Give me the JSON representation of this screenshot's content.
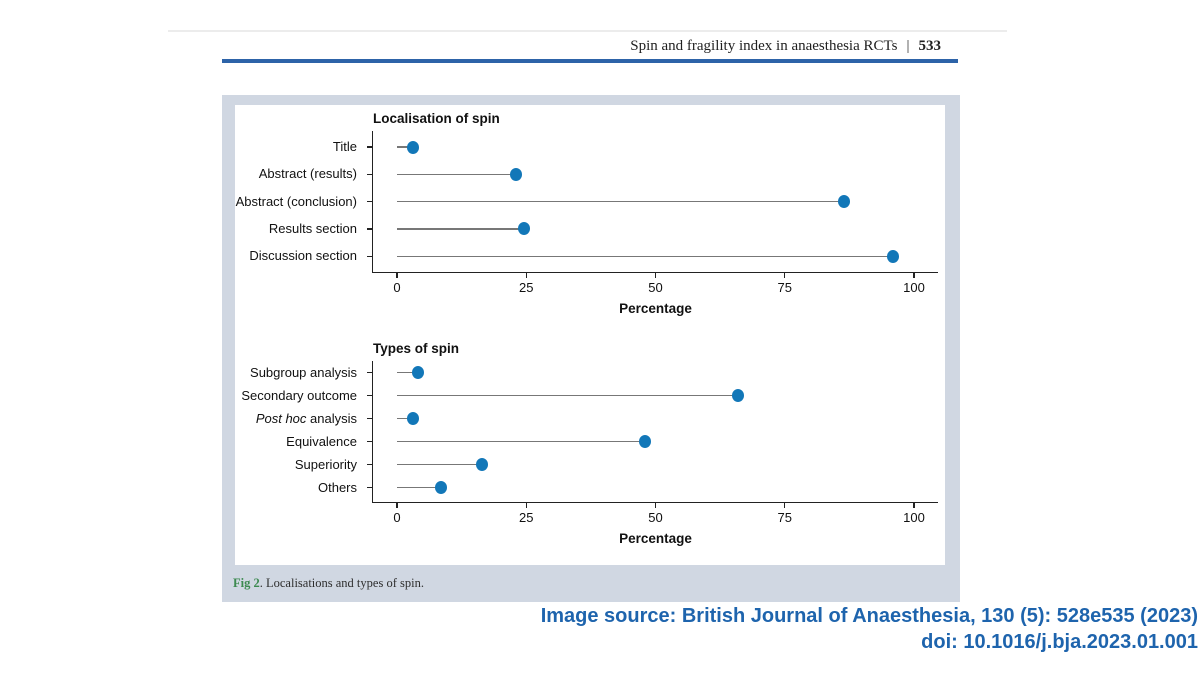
{
  "header": {
    "title": "Spin and fragility index in anaesthesia RCTs",
    "separator": "|",
    "page_number": "533"
  },
  "figure": {
    "caption_label": "Fig 2",
    "caption_text": ". Localisations and types of spin."
  },
  "source": {
    "line1": "Image source: British Journal of Anaesthesia, 130 (5): 528e535 (2023)",
    "line2": "doi: 10.1016/j.bja.2023.01.001"
  },
  "colors": {
    "dot": "#1277b8",
    "stem": "#777777",
    "figure_bg": "#d0d7e2",
    "header_bar": "#2d63a8",
    "caption_label_green": "#3d8a50",
    "source_text": "#1e64ad"
  },
  "chart_data": [
    {
      "type": "lollipop",
      "title": "Localisation of spin",
      "xlabel": "Percentage",
      "xlim": [
        0,
        100
      ],
      "xticks": [
        0,
        25,
        50,
        75,
        100
      ],
      "grid": false,
      "categories": [
        "Title",
        "Abstract (results)",
        "Abstract (conclusion)",
        "Results section",
        "Discussion section"
      ],
      "values": [
        3,
        23,
        86.5,
        24.5,
        96
      ]
    },
    {
      "type": "lollipop",
      "title": "Types of spin",
      "xlabel": "Percentage",
      "xlim": [
        0,
        100
      ],
      "xticks": [
        0,
        25,
        50,
        75,
        100
      ],
      "grid": false,
      "categories": [
        "Subgroup analysis",
        "Secondary outcome",
        "Post hoc analysis",
        "Equivalence",
        "Superiority",
        "Others"
      ],
      "values": [
        4,
        66,
        3,
        48,
        16.5,
        8.5
      ],
      "italic_labels": {
        "Post hoc analysis": "Post hoc"
      }
    }
  ]
}
